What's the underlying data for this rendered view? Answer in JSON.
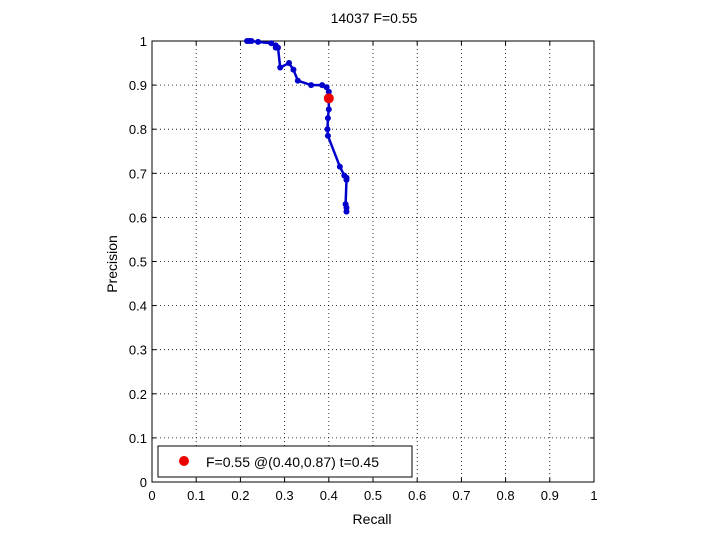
{
  "chart_data": {
    "type": "line",
    "title": "14037 F=0.55",
    "xlabel": "Recall",
    "ylabel": "Precision",
    "xlim": [
      0,
      1
    ],
    "ylim": [
      0,
      1
    ],
    "xticks": [
      "0",
      "0.1",
      "0.2",
      "0.3",
      "0.4",
      "0.5",
      "0.6",
      "0.7",
      "0.8",
      "0.9",
      "1"
    ],
    "yticks": [
      "0",
      "0.1",
      "0.2",
      "0.3",
      "0.4",
      "0.5",
      "0.6",
      "0.7",
      "0.8",
      "0.9",
      "1"
    ],
    "grid": true,
    "legend_position": "bottom-left",
    "series": [
      {
        "color": "#0000cc",
        "points": [
          [
            0.215,
            1.0
          ],
          [
            0.22,
            1.0
          ],
          [
            0.225,
            1.0
          ],
          [
            0.24,
            0.998
          ],
          [
            0.27,
            0.995
          ],
          [
            0.28,
            0.99
          ],
          [
            0.28,
            0.985
          ],
          [
            0.285,
            0.985
          ],
          [
            0.29,
            0.94
          ],
          [
            0.31,
            0.95
          ],
          [
            0.32,
            0.935
          ],
          [
            0.33,
            0.91
          ],
          [
            0.36,
            0.9
          ],
          [
            0.385,
            0.9
          ],
          [
            0.395,
            0.895
          ],
          [
            0.4,
            0.885
          ],
          [
            0.4,
            0.87
          ],
          [
            0.4,
            0.845
          ],
          [
            0.398,
            0.825
          ],
          [
            0.397,
            0.8
          ],
          [
            0.398,
            0.785
          ],
          [
            0.425,
            0.715
          ],
          [
            0.435,
            0.695
          ],
          [
            0.44,
            0.69
          ],
          [
            0.44,
            0.685
          ],
          [
            0.438,
            0.63
          ],
          [
            0.44,
            0.622
          ],
          [
            0.44,
            0.613
          ]
        ]
      }
    ],
    "highlight": {
      "recall": 0.4,
      "precision": 0.87,
      "color": "#ee0000",
      "label": "F=0.55 @(0.40,0.87) t=0.45"
    }
  }
}
